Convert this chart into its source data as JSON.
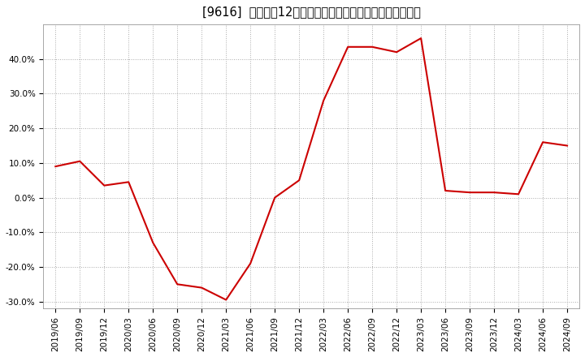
{
  "title": "[9616]  売上高の12か月移動合計の対前年同期増減率の推移",
  "line_color": "#cc0000",
  "background_color": "#ffffff",
  "plot_bg_color": "#ffffff",
  "grid_color": "#aaaaaa",
  "x_labels": [
    "2019/06",
    "2019/09",
    "2019/12",
    "2020/03",
    "2020/06",
    "2020/09",
    "2020/12",
    "2021/03",
    "2021/06",
    "2021/09",
    "2021/12",
    "2022/03",
    "2022/06",
    "2022/09",
    "2022/12",
    "2023/03",
    "2023/06",
    "2023/09",
    "2023/12",
    "2024/03",
    "2024/06",
    "2024/09"
  ],
  "y_values": [
    9.0,
    10.5,
    3.5,
    4.5,
    -13.0,
    -25.0,
    -26.0,
    -29.5,
    -19.0,
    0.0,
    5.0,
    28.0,
    43.5,
    43.5,
    42.0,
    46.0,
    2.0,
    1.5,
    1.5,
    1.0,
    16.0,
    15.0
  ],
  "ylim": [
    -32.0,
    50.0
  ],
  "yticks": [
    -30.0,
    -20.0,
    -10.0,
    0.0,
    10.0,
    20.0,
    30.0,
    40.0
  ],
  "title_fontsize": 10.5,
  "tick_fontsize": 7.5,
  "line_width": 1.5
}
